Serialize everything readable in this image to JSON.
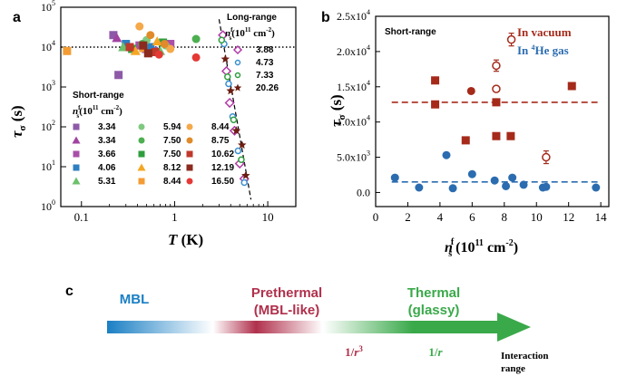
{
  "panel_labels": {
    "a": "a",
    "b": "b",
    "c": "c"
  },
  "chart_data": [
    {
      "id": "a",
      "type": "scatter",
      "xscale": "log",
      "yscale": "log",
      "xlim": [
        0.06,
        20
      ],
      "ylim": [
        1,
        100000
      ],
      "xlabel_symbol": "T",
      "xlabel_unit": " (K)",
      "ylabel_symbol": "τ",
      "ylabel_sub": "σ",
      "ylabel_unit": " (s)",
      "x_ticks": [
        {
          "value": 0.1,
          "label": "0.1"
        },
        {
          "value": 1,
          "label": "1"
        },
        {
          "value": 10,
          "label": "10"
        }
      ],
      "y_ticks": [
        {
          "value": 1,
          "base": "10",
          "exp": "0"
        },
        {
          "value": 10,
          "base": "10",
          "exp": "1"
        },
        {
          "value": 100,
          "base": "10",
          "exp": "2"
        },
        {
          "value": 1000,
          "base": "10",
          "exp": "3"
        },
        {
          "value": 10000,
          "base": "10",
          "exp": "4"
        },
        {
          "value": 100000,
          "base": "10",
          "exp": "5"
        }
      ],
      "reference_line": {
        "y": 10000,
        "style": "dotted"
      },
      "fit_line": {
        "x": [
          3.0,
          6.6
        ],
        "y": [
          50000,
          1.5
        ],
        "style": "dashed"
      },
      "legend_short_title": "Short-range",
      "legend_short_subtitle": {
        "sym": "n",
        "sup": "f",
        "sub": "s",
        "unit": "(10",
        "unit_exp": "11",
        "unit_tail": " cm",
        "unit_tail_exp": "-2",
        "close": ")"
      },
      "legend_long_title": "Long-range",
      "legend_long_subtitle": {
        "sym": "n",
        "sup": "f",
        "sub": "s",
        "unit": "(10",
        "unit_exp": "11",
        "unit_tail": " cm",
        "unit_tail_exp": "-2",
        "close": ")"
      },
      "short_range_series": [
        {
          "label": "3.34",
          "marker": "square",
          "color": "#8e5aa8",
          "points": [
            [
              0.22,
              20000
            ],
            [
              0.25,
              2000
            ],
            [
              0.6,
              8000
            ]
          ]
        },
        {
          "label": "3.34",
          "marker": "triangle",
          "color": "#a044a0",
          "points": [
            [
              0.24,
              17000
            ],
            [
              0.5,
              9000
            ]
          ]
        },
        {
          "label": "3.66",
          "marker": "square",
          "color": "#a94fa9",
          "points": [
            [
              0.42,
              11000
            ],
            [
              0.9,
              12000
            ]
          ]
        },
        {
          "label": "4.06",
          "marker": "square",
          "color": "#2e7fc1",
          "points": [
            [
              0.3,
              12000
            ],
            [
              0.55,
              10000
            ]
          ]
        },
        {
          "label": "5.31",
          "marker": "triangle",
          "color": "#6cc06c",
          "points": [
            [
              0.28,
              10000
            ],
            [
              0.7,
              8000
            ]
          ]
        },
        {
          "label": "5.94",
          "marker": "circle",
          "color": "#7fc97f",
          "points": [
            [
              0.5,
              15000
            ],
            [
              0.8,
              11000
            ]
          ]
        },
        {
          "label": "7.50",
          "marker": "circle",
          "color": "#4caf50",
          "points": [
            [
              0.45,
              12000
            ],
            [
              1.7,
              16000
            ]
          ]
        },
        {
          "label": "7.50",
          "marker": "square",
          "color": "#2e9e3e",
          "points": [
            [
              0.35,
              9000
            ],
            [
              0.75,
              13000
            ]
          ]
        },
        {
          "label": "8.12",
          "marker": "triangle",
          "color": "#f5a623",
          "points": [
            [
              0.38,
              8000
            ],
            [
              0.65,
              14000
            ]
          ]
        },
        {
          "label": "8.44",
          "marker": "square",
          "color": "#f39c34",
          "points": [
            [
              0.07,
              8000
            ],
            [
              0.46,
              9500
            ]
          ]
        },
        {
          "label": "8.44",
          "marker": "circle",
          "color": "#f5a94a",
          "points": [
            [
              0.42,
              33000
            ],
            [
              0.9,
              9000
            ]
          ]
        },
        {
          "label": "8.75",
          "marker": "circle",
          "color": "#e08a2a",
          "points": [
            [
              0.55,
              20000
            ],
            [
              0.78,
              12000
            ]
          ]
        },
        {
          "label": "10.62",
          "marker": "square",
          "color": "#c0392b",
          "points": [
            [
              0.33,
              10000
            ],
            [
              0.62,
              7500
            ]
          ]
        },
        {
          "label": "12.19",
          "marker": "square",
          "color": "#8b2a1e",
          "points": [
            [
              0.46,
              11000
            ],
            [
              0.52,
              7000
            ]
          ]
        },
        {
          "label": "16.50",
          "marker": "circle",
          "color": "#e53935",
          "points": [
            [
              1.7,
              5500
            ],
            [
              0.68,
              6500
            ]
          ]
        }
      ],
      "long_range_series": [
        {
          "label": "3.88",
          "marker": "diamond-open",
          "color": "#b23aa6",
          "points": [
            [
              3.3,
              20000
            ],
            [
              3.6,
              2500
            ],
            [
              3.9,
              400
            ],
            [
              4.4,
              80
            ],
            [
              5.0,
              12
            ],
            [
              5.6,
              5
            ]
          ]
        },
        {
          "label": "4.73",
          "marker": "circle-open",
          "color": "#3a8fd0",
          "points": [
            [
              3.4,
              12000
            ],
            [
              3.8,
              1200
            ],
            [
              4.2,
              180
            ],
            [
              4.8,
              25
            ],
            [
              5.6,
              4
            ]
          ]
        },
        {
          "label": "7.33",
          "marker": "circle-open",
          "color": "#2e9e3e",
          "points": [
            [
              3.2,
              15000
            ],
            [
              3.7,
              1800
            ],
            [
              4.3,
              150
            ],
            [
              5.2,
              15
            ]
          ]
        },
        {
          "label": "20.26",
          "marker": "star",
          "color": "#6b1e12",
          "points": [
            [
              3.5,
              5000
            ],
            [
              4.0,
              800
            ],
            [
              4.6,
              80
            ],
            [
              5.3,
              35
            ],
            [
              5.8,
              6
            ]
          ]
        }
      ]
    },
    {
      "id": "b",
      "type": "scatter",
      "xlim": [
        0,
        14.5
      ],
      "ylim": [
        -2000,
        25000
      ],
      "xlabel_symbol": "n",
      "xlabel_sup": "f",
      "xlabel_sub": "s",
      "xlabel_unit": " (10",
      "xlabel_unit_exp": "11",
      "xlabel_unit_tail": " cm",
      "xlabel_unit_tail_exp": "-2",
      "xlabel_close": ")",
      "ylabel_symbol": "τ",
      "ylabel_sub": "σ",
      "ylabel_unit": " (s)",
      "x_ticks": [
        {
          "value": 0,
          "label": "0"
        },
        {
          "value": 2,
          "label": "2"
        },
        {
          "value": 4,
          "label": "4"
        },
        {
          "value": 6,
          "label": "6"
        },
        {
          "value": 8,
          "label": "8"
        },
        {
          "value": 10,
          "label": "10"
        },
        {
          "value": 12,
          "label": "12"
        },
        {
          "value": 14,
          "label": "14"
        }
      ],
      "y_ticks": [
        {
          "value": 0,
          "mant": "0.0",
          "exp": ""
        },
        {
          "value": 5000,
          "mant": "5.0x10",
          "exp": "3"
        },
        {
          "value": 10000,
          "mant": "1.0x10",
          "exp": "4"
        },
        {
          "value": 15000,
          "mant": "1.5x10",
          "exp": "4"
        },
        {
          "value": 20000,
          "mant": "2.0x10",
          "exp": "4"
        },
        {
          "value": 25000,
          "mant": "2.5x10",
          "exp": "4"
        }
      ],
      "annotation": "Short-range",
      "legend": [
        {
          "text": "In vacuum",
          "sup_pre": "",
          "color": "#a52a1a"
        },
        {
          "text_pre": "In ",
          "sup": "4",
          "text": "He gas",
          "color": "#2b6cb0"
        }
      ],
      "series": [
        {
          "name": "In vacuum",
          "marker": "square",
          "color": "#a52a1a",
          "points": [
            [
              3.7,
              15900
            ],
            [
              3.7,
              12500
            ],
            [
              7.5,
              12800
            ],
            [
              7.5,
              8000
            ],
            [
              8.4,
              8000
            ],
            [
              5.6,
              7400
            ],
            [
              12.2,
              15100
            ]
          ]
        },
        {
          "name": "In vacuum (circles)",
          "marker": "circle",
          "color": "#a52a1a",
          "points": [
            [
              5.94,
              14400
            ]
          ]
        },
        {
          "name": "In vacuum (open, with error)",
          "marker": "circle-open",
          "color": "#a52a1a",
          "points": [
            [
              7.5,
              14700,
              0
            ],
            [
              7.5,
              18000,
              800
            ],
            [
              8.44,
              21700,
              900
            ],
            [
              10.6,
              5000,
              900
            ]
          ]
        },
        {
          "name": "In 4He gas",
          "marker": "circle",
          "color": "#2b6cb0",
          "points": [
            [
              1.2,
              2100
            ],
            [
              2.7,
              700
            ],
            [
              4.4,
              5300
            ],
            [
              4.8,
              600
            ],
            [
              6.0,
              2600
            ],
            [
              7.4,
              1700
            ],
            [
              8.1,
              900
            ],
            [
              8.5,
              2100
            ],
            [
              9.2,
              1100
            ],
            [
              10.4,
              700
            ],
            [
              10.6,
              800
            ],
            [
              13.7,
              700
            ]
          ]
        }
      ],
      "reference_lines": [
        {
          "y": 12800,
          "color": "#a52a1a",
          "style": "dashed"
        },
        {
          "y": 1500,
          "color": "#2b6cb0",
          "style": "dashed"
        }
      ]
    }
  ],
  "diagram_c": {
    "phases": [
      {
        "line1": "MBL",
        "line2": "",
        "color": "#1a7fc4"
      },
      {
        "line1": "Prethermal",
        "line2": "(MBL-like)",
        "color": "#b0304c"
      },
      {
        "line1": "Thermal",
        "line2": "(glassy)",
        "color": "#3aa94a"
      }
    ],
    "markers": [
      {
        "pre": "1/",
        "var": "r",
        "sup": "3"
      },
      {
        "pre": "1/",
        "var": "r",
        "sup": ""
      }
    ],
    "axis_label_line1": "Interaction",
    "axis_label_line2": "range",
    "gradient": [
      "#1a7fc4",
      "#ffffff",
      "#b0304c",
      "#ffffff",
      "#3aa94a"
    ]
  }
}
